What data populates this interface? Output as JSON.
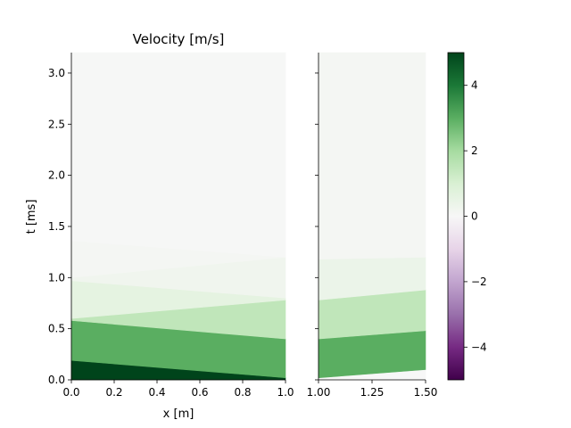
{
  "chart_data": {
    "type": "heatmap",
    "title": "Velocity [m/s]",
    "xlabel": "x [m]",
    "ylabel": "t [ms]",
    "colormap": "PRGn",
    "colorbar": {
      "vmin": -5,
      "vmax": 5,
      "ticks": [
        4,
        2,
        0,
        -2,
        -4
      ],
      "tick_labels": [
        "4",
        "2",
        "0",
        "−2",
        "−4"
      ],
      "colors": [
        "#40004b",
        "#762a83",
        "#9970ab",
        "#c2a5cf",
        "#e7d4e8",
        "#f7f7f7",
        "#d9f0d3",
        "#a6dba0",
        "#5aae61",
        "#1b7837",
        "#00441b"
      ]
    },
    "panels": [
      {
        "name": "left",
        "xlim": [
          0.0,
          1.0
        ],
        "ylim": [
          0.0,
          3.2
        ],
        "xticks": [
          0.0,
          0.2,
          0.4,
          0.6,
          0.8,
          1.0
        ],
        "xtick_labels": [
          "0.0",
          "0.2",
          "0.4",
          "0.6",
          "0.8",
          "1.0"
        ],
        "yticks": [
          0.0,
          0.5,
          1.0,
          1.5,
          2.0,
          2.5,
          3.0
        ],
        "ytick_labels": [
          "0.0",
          "0.5",
          "1.0",
          "1.5",
          "2.0",
          "2.5",
          "3.0"
        ],
        "bands": [
          {
            "value": 5.0,
            "t_bottom_start": 0.0,
            "t_bottom_end": 0.0,
            "t_top_start": 0.19,
            "t_top_end": 0.02
          },
          {
            "value": 3.0,
            "t_bottom_start": 0.19,
            "t_bottom_end": 0.02,
            "t_top_start": 0.58,
            "t_top_end": 0.4
          },
          {
            "value": 1.5,
            "t_bottom_start": 0.58,
            "t_bottom_end": 0.4,
            "t_top_start": 0.6,
            "t_top_end": 0.78
          },
          {
            "value": 0.6,
            "t_bottom_start": 0.6,
            "t_bottom_end": 0.78,
            "t_top_start": 0.97,
            "t_top_end": 0.8
          },
          {
            "value": 0.25,
            "t_bottom_start": 0.97,
            "t_bottom_end": 0.8,
            "t_top_start": 1.0,
            "t_top_end": 1.2
          },
          {
            "value": 0.1,
            "t_bottom_start": 1.0,
            "t_bottom_end": 1.2,
            "t_top_start": 1.36,
            "t_top_end": 1.2
          },
          {
            "value": 0.03,
            "t_bottom_start": 1.36,
            "t_bottom_end": 1.2,
            "t_top_start": 3.2,
            "t_top_end": 3.2
          }
        ]
      },
      {
        "name": "right",
        "xlim": [
          1.0,
          1.5
        ],
        "ylim": [
          0.0,
          3.2
        ],
        "xticks": [
          1.0,
          1.25,
          1.5
        ],
        "xtick_labels": [
          "1.00",
          "1.25",
          "1.50"
        ],
        "yticks": [
          0.0,
          0.5,
          1.0,
          1.5,
          2.0,
          2.5,
          3.0
        ],
        "bands": [
          {
            "value": 0.0,
            "t_bottom_start": 0.0,
            "t_bottom_end": 0.0,
            "t_top_start": 0.02,
            "t_top_end": 0.1
          },
          {
            "value": 3.0,
            "t_bottom_start": 0.02,
            "t_bottom_end": 0.1,
            "t_top_start": 0.4,
            "t_top_end": 0.48
          },
          {
            "value": 1.5,
            "t_bottom_start": 0.4,
            "t_bottom_end": 0.48,
            "t_top_start": 0.78,
            "t_top_end": 0.88
          },
          {
            "value": 0.4,
            "t_bottom_start": 0.78,
            "t_bottom_end": 0.88,
            "t_top_start": 1.18,
            "t_top_end": 1.2
          },
          {
            "value": 0.1,
            "t_bottom_start": 1.18,
            "t_bottom_end": 1.2,
            "t_top_start": 3.2,
            "t_top_end": 3.2
          }
        ]
      }
    ]
  }
}
